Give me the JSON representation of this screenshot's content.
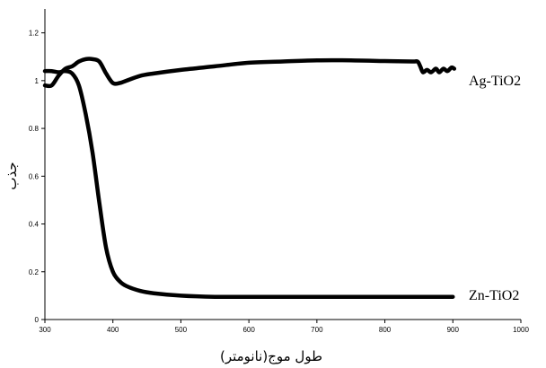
{
  "chart_data": {
    "type": "line",
    "title": "",
    "xlabel": "طول موج(نانومتر)",
    "ylabel": "جذب",
    "xlim": [
      300,
      1000
    ],
    "ylim": [
      0,
      1.3
    ],
    "x_ticks": [
      300,
      400,
      500,
      600,
      700,
      800,
      900,
      1000
    ],
    "y_ticks": [
      0,
      0.2,
      0.4,
      0.6,
      0.8,
      1,
      1.2
    ],
    "x_tick_labels": [
      "300",
      "400",
      "500",
      "600",
      "700",
      "800",
      "900",
      "1000"
    ],
    "y_tick_labels": [
      "0",
      "0.2",
      "0.4",
      "0.6",
      "0.8",
      "1",
      "1.2"
    ],
    "grid": false,
    "legend": "inline labels at right of series",
    "series": [
      {
        "name": "Ag-TiO2",
        "color": "#000000",
        "points": [
          [
            300,
            0.98
          ],
          [
            310,
            0.98
          ],
          [
            320,
            1.02
          ],
          [
            330,
            1.05
          ],
          [
            340,
            1.06
          ],
          [
            350,
            1.08
          ],
          [
            360,
            1.09
          ],
          [
            370,
            1.09
          ],
          [
            380,
            1.08
          ],
          [
            390,
            1.03
          ],
          [
            400,
            0.99
          ],
          [
            410,
            0.99
          ],
          [
            420,
            1.0
          ],
          [
            440,
            1.02
          ],
          [
            460,
            1.03
          ],
          [
            500,
            1.045
          ],
          [
            550,
            1.06
          ],
          [
            600,
            1.075
          ],
          [
            650,
            1.08
          ],
          [
            700,
            1.085
          ],
          [
            750,
            1.085
          ],
          [
            800,
            1.082
          ],
          [
            840,
            1.08
          ],
          [
            848,
            1.08
          ],
          [
            852,
            1.06
          ],
          [
            856,
            1.035
          ],
          [
            862,
            1.045
          ],
          [
            868,
            1.035
          ],
          [
            875,
            1.05
          ],
          [
            880,
            1.035
          ],
          [
            886,
            1.05
          ],
          [
            892,
            1.04
          ],
          [
            898,
            1.055
          ],
          [
            902,
            1.05
          ]
        ]
      },
      {
        "name": "Zn-TiO2",
        "color": "#000000",
        "points": [
          [
            300,
            1.04
          ],
          [
            310,
            1.04
          ],
          [
            320,
            1.035
          ],
          [
            330,
            1.04
          ],
          [
            340,
            1.03
          ],
          [
            350,
            0.98
          ],
          [
            360,
            0.86
          ],
          [
            370,
            0.7
          ],
          [
            380,
            0.49
          ],
          [
            390,
            0.3
          ],
          [
            400,
            0.2
          ],
          [
            410,
            0.16
          ],
          [
            420,
            0.14
          ],
          [
            440,
            0.12
          ],
          [
            460,
            0.11
          ],
          [
            500,
            0.1
          ],
          [
            550,
            0.095
          ],
          [
            600,
            0.095
          ],
          [
            700,
            0.095
          ],
          [
            800,
            0.095
          ],
          [
            900,
            0.095
          ]
        ]
      }
    ]
  }
}
